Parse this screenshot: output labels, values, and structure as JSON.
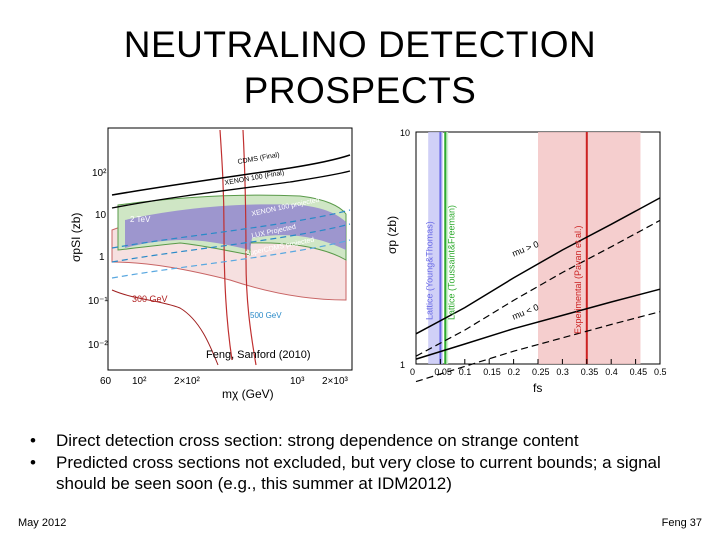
{
  "slide": {
    "title_line1": "NEUTRALINO DETECTION",
    "title_line2": "PROSPECTS",
    "bullets": [
      "Direct detection cross section: strong dependence on strange content",
      "Predicted cross sections not excluded, but very close to current bounds; a signal should be seen soon (e.g., this summer at IDM2012)"
    ],
    "footer_left": "May 2012",
    "footer_right": "Feng 37"
  },
  "left_plot": {
    "credit": "Feng, Sanford (2010)",
    "y_ticks": [
      "10²",
      "10",
      "1",
      "10⁻¹",
      "10⁻²"
    ],
    "x_ticks": [
      "60",
      "10²",
      "2×10²",
      "10³",
      "2×10³"
    ],
    "ylabel": "σpSI (zb)",
    "xlabel": "mχ (GeV)",
    "labels": [
      "CDMS (Final)",
      "XENON 100 (Final)",
      "2 TeV",
      "XENON 100 projected",
      "LUX Projected",
      "SuperCDMS projected",
      "300 GeV",
      "500 GeV"
    ]
  },
  "chart_data": {
    "type": "line",
    "title": "",
    "xlabel": "fs",
    "ylabel": "σp (zb)",
    "x_ticks": [
      "0",
      "0.05",
      "0.1",
      "0.15",
      "0.2",
      "0.25",
      "0.3",
      "0.35",
      "0.4",
      "0.45",
      "0.5"
    ],
    "y_ticks": [
      "1",
      "10"
    ],
    "xlim": [
      0,
      0.5
    ],
    "ylim": [
      1,
      10
    ],
    "log_y": true,
    "series": [
      {
        "name": "mu > 0",
        "x": [
          0,
          0.1,
          0.2,
          0.3,
          0.4,
          0.5
        ],
        "y": [
          1.35,
          1.75,
          2.35,
          3.1,
          4.0,
          5.2
        ]
      },
      {
        "name": "mu < 0",
        "x": [
          0,
          0.1,
          0.2,
          0.3,
          0.4,
          0.5
        ],
        "y": [
          1.05,
          1.22,
          1.42,
          1.62,
          1.85,
          2.1
        ]
      }
    ],
    "bands": [
      {
        "label": "Lattice (Young&Thomas)",
        "center": 0.05,
        "range": [
          0.025,
          0.055
        ],
        "color": "#6a6ae6"
      },
      {
        "label": "Lattice (Toussaint&Freeman)",
        "center": 0.06,
        "range": [
          0.058,
          0.066
        ],
        "color": "#2eaa2e"
      },
      {
        "label": "Experimental (Pavan et al.)",
        "center": 0.35,
        "range": [
          0.25,
          0.46
        ],
        "color": "#cc2222"
      }
    ]
  },
  "colors": {
    "accent_red": "#cc2222",
    "band_blue": "#6a6ae6",
    "band_green": "#2eaa2e",
    "band_pink": "#f3c6c6"
  }
}
